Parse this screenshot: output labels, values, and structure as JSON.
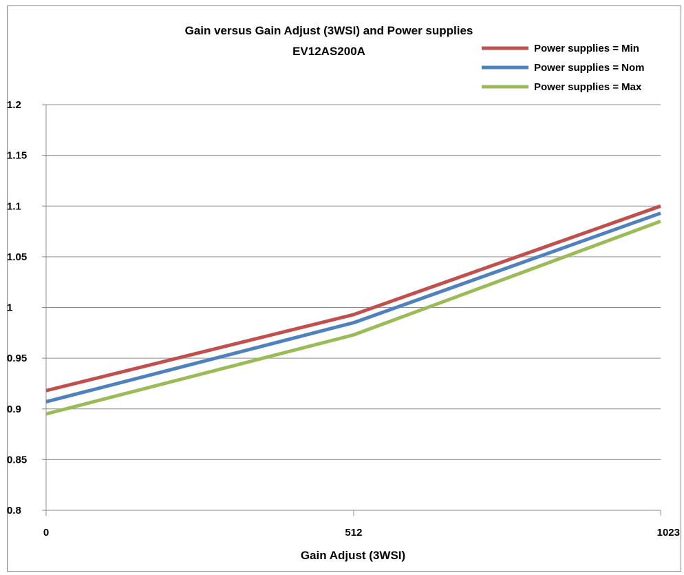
{
  "chart_data": {
    "type": "line",
    "title": "Gain versus Gain Adjust (3WSI) and Power supplies",
    "subtitle": "EV12AS200A",
    "xlabel": "Gain Adjust (3WSI)",
    "ylabel": "",
    "x": [
      0,
      512,
      1023
    ],
    "x_tick_labels": [
      "0",
      "512",
      "1023"
    ],
    "ylim": [
      0.8,
      1.2
    ],
    "y_ticks": [
      0.8,
      0.85,
      0.9,
      0.95,
      1,
      1.05,
      1.1,
      1.15,
      1.2
    ],
    "y_tick_labels": [
      "0.8",
      "0.85",
      "0.9",
      "0.95",
      "1",
      "1.05",
      "1.1",
      "1.15",
      "1.2"
    ],
    "grid": "horizontal",
    "legend_position": "top-right",
    "series": [
      {
        "name": "Power supplies = Min",
        "color": "#c0504d",
        "values": [
          0.918,
          0.993,
          1.1
        ]
      },
      {
        "name": "Power supplies = Nom",
        "color": "#4f81bd",
        "values": [
          0.907,
          0.985,
          1.093
        ]
      },
      {
        "name": "Power supplies = Max",
        "color": "#9bbb59",
        "values": [
          0.895,
          0.973,
          1.085
        ]
      }
    ]
  }
}
